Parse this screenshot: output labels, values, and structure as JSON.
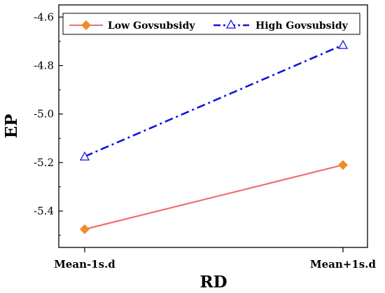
{
  "chart_data": {
    "type": "line",
    "categories": [
      "Mean-1s.d",
      "Mean+1s.d"
    ],
    "xlabel": "RD",
    "ylabel": "EP",
    "ylim": [
      -5.55,
      -4.55
    ],
    "yticks": [
      -5.4,
      -5.2,
      -5.0,
      -4.8,
      -4.6
    ],
    "ytick_labels": [
      "-5.4",
      "-5.2",
      "-5.0",
      "-4.8",
      "-4.6"
    ],
    "grid": false,
    "legend_position": "top",
    "series": [
      {
        "name": "Low Govsubsidy",
        "values": [
          -5.475,
          -5.21
        ],
        "color": "#f07070",
        "marker": "filled-diamond",
        "marker_color": "#f08c28",
        "line_style": "solid"
      },
      {
        "name": "High Govsubsidy",
        "values": [
          -5.175,
          -4.715
        ],
        "color": "#1414dc",
        "marker": "open-triangle",
        "marker_color": "#1414dc",
        "line_style": "dash-dot"
      }
    ]
  }
}
